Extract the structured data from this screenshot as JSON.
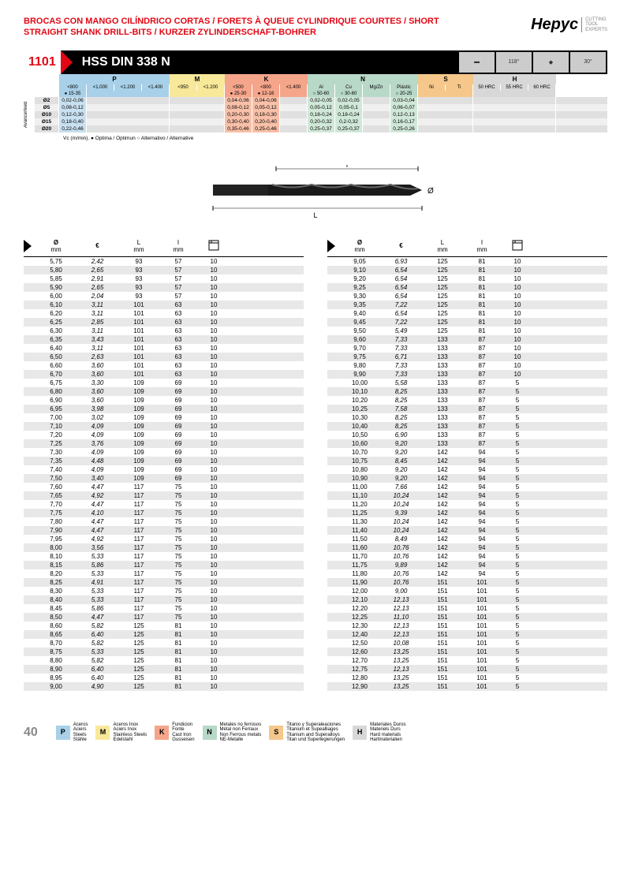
{
  "header": {
    "title": "BROCAS CON MANGO CILÍNDRICO CORTAS / FORETS À QUEUE CYLINDRIQUE COURTES / SHORT STRAIGHT SHANK DRILL-BITS / KURZER ZYLINDERSCHAFT-BOHRER",
    "logo": "Hepyc",
    "logo_tag": "CUTTING\nTOOL\nEXPERTS"
  },
  "band": {
    "num": "1101",
    "title": "HSS DIN 338 N",
    "angle1": "118°",
    "angle2": "30°"
  },
  "materials": {
    "groups": [
      "P",
      "M",
      "K",
      "N",
      "S",
      "H"
    ],
    "p_sub": [
      "<800",
      "<1.000",
      "<1.200",
      "<1.400"
    ],
    "m_sub": [
      "<950",
      "<1.200"
    ],
    "k_sub": [
      "<500",
      "<800",
      "<1.400"
    ],
    "n_sub": [
      "Al",
      "Cu",
      "Mg/Zn",
      "Plástic"
    ],
    "s_sub": [
      "Ni",
      "Ti"
    ],
    "h_sub": [
      "50 HRC",
      "55 HRC",
      "60 HRC"
    ],
    "p_mark": "●\n15-35",
    "k_mark1": "●\n25-30",
    "k_mark2": "●\n12-16",
    "n_mark1": "○\n50-60",
    "n_mark2": "○\n30-60",
    "n_mark4": "○\n20-25",
    "rows": [
      {
        "d": "Ø2",
        "p": "0,02-0,06",
        "k1": "0,04-0,06",
        "k2": "0,04-0,06",
        "n1": "0,02-0,05",
        "n2": "0,02-0,05",
        "n4": "0,03-0,04"
      },
      {
        "d": "Ø5",
        "p": "0,08-0,12",
        "k1": "0,08-0,12",
        "k2": "0,05-0,12",
        "n1": "0,05-0,12",
        "n2": "0,05-0,1",
        "n4": "0,06-0,07"
      },
      {
        "d": "Ø10",
        "p": "0,12-0,30",
        "k1": "0,20-0,30",
        "k2": "0,18-0,30",
        "n1": "0,18-0,24",
        "n2": "0,18-0,24",
        "n4": "0,12-0,13"
      },
      {
        "d": "Ø15",
        "p": "0,18-0,40",
        "k1": "0,30-0,40",
        "k2": "0,20-0,40",
        "n1": "0,20-0,32",
        "n2": "0,2-0,32",
        "n4": "0,16-0,17"
      },
      {
        "d": "Ø20",
        "p": "0,22-0,46",
        "k1": "0,35-0,46",
        "k2": "0,25-0,46",
        "n1": "0,25-0,37",
        "n2": "0,25-0,37",
        "n4": "0,25-0,26"
      }
    ],
    "note": "Vc (m/min). ● Optima / Optimun ○ Alternativo / Alternative",
    "feed_label": "Avance/feed"
  },
  "cols": {
    "dia": "Ø\nmm",
    "eur": "€",
    "L": "L\nmm",
    "I": "I\nmm",
    "qty": ""
  },
  "left": [
    [
      "5,75",
      "2,42",
      "93",
      "57",
      "10"
    ],
    [
      "5,80",
      "2,65",
      "93",
      "57",
      "10"
    ],
    [
      "5,85",
      "2,91",
      "93",
      "57",
      "10"
    ],
    [
      "5,90",
      "2,65",
      "93",
      "57",
      "10"
    ],
    [
      "6,00",
      "2,04",
      "93",
      "57",
      "10"
    ],
    [
      "6,10",
      "3,11",
      "101",
      "63",
      "10"
    ],
    [
      "6,20",
      "3,11",
      "101",
      "63",
      "10"
    ],
    [
      "6,25",
      "2,85",
      "101",
      "63",
      "10"
    ],
    [
      "6,30",
      "3,11",
      "101",
      "63",
      "10"
    ],
    [
      "6,35",
      "3,43",
      "101",
      "63",
      "10"
    ],
    [
      "6,40",
      "3,11",
      "101",
      "63",
      "10"
    ],
    [
      "6,50",
      "2,63",
      "101",
      "63",
      "10"
    ],
    [
      "6,60",
      "3,60",
      "101",
      "63",
      "10"
    ],
    [
      "6,70",
      "3,60",
      "101",
      "63",
      "10"
    ],
    [
      "6,75",
      "3,30",
      "109",
      "69",
      "10"
    ],
    [
      "6,80",
      "3,60",
      "109",
      "69",
      "10"
    ],
    [
      "6,90",
      "3,60",
      "109",
      "69",
      "10"
    ],
    [
      "6,95",
      "3,98",
      "109",
      "69",
      "10"
    ],
    [
      "7,00",
      "3,02",
      "109",
      "69",
      "10"
    ],
    [
      "7,10",
      "4,09",
      "109",
      "69",
      "10"
    ],
    [
      "7,20",
      "4,09",
      "109",
      "69",
      "10"
    ],
    [
      "7,25",
      "3,76",
      "109",
      "69",
      "10"
    ],
    [
      "7,30",
      "4,09",
      "109",
      "69",
      "10"
    ],
    [
      "7,35",
      "4,48",
      "109",
      "69",
      "10"
    ],
    [
      "7,40",
      "4,09",
      "109",
      "69",
      "10"
    ],
    [
      "7,50",
      "3,40",
      "109",
      "69",
      "10"
    ],
    [
      "7,60",
      "4,47",
      "117",
      "75",
      "10"
    ],
    [
      "7,65",
      "4,92",
      "117",
      "75",
      "10"
    ],
    [
      "7,70",
      "4,47",
      "117",
      "75",
      "10"
    ],
    [
      "7,75",
      "4,10",
      "117",
      "75",
      "10"
    ],
    [
      "7,80",
      "4,47",
      "117",
      "75",
      "10"
    ],
    [
      "7,90",
      "4,47",
      "117",
      "75",
      "10"
    ],
    [
      "7,95",
      "4,92",
      "117",
      "75",
      "10"
    ],
    [
      "8,00",
      "3,56",
      "117",
      "75",
      "10"
    ],
    [
      "8,10",
      "5,33",
      "117",
      "75",
      "10"
    ],
    [
      "8,15",
      "5,86",
      "117",
      "75",
      "10"
    ],
    [
      "8,20",
      "5,33",
      "117",
      "75",
      "10"
    ],
    [
      "8,25",
      "4,91",
      "117",
      "75",
      "10"
    ],
    [
      "8,30",
      "5,33",
      "117",
      "75",
      "10"
    ],
    [
      "8,40",
      "5,33",
      "117",
      "75",
      "10"
    ],
    [
      "8,45",
      "5,86",
      "117",
      "75",
      "10"
    ],
    [
      "8,50",
      "4,47",
      "117",
      "75",
      "10"
    ],
    [
      "8,60",
      "5,82",
      "125",
      "81",
      "10"
    ],
    [
      "8,65",
      "6,40",
      "125",
      "81",
      "10"
    ],
    [
      "8,70",
      "5,82",
      "125",
      "81",
      "10"
    ],
    [
      "8,75",
      "5,33",
      "125",
      "81",
      "10"
    ],
    [
      "8,80",
      "5,82",
      "125",
      "81",
      "10"
    ],
    [
      "8,90",
      "6,40",
      "125",
      "81",
      "10"
    ],
    [
      "8,95",
      "6,40",
      "125",
      "81",
      "10"
    ],
    [
      "9,00",
      "4,90",
      "125",
      "81",
      "10"
    ]
  ],
  "right": [
    [
      "9,05",
      "6,93",
      "125",
      "81",
      "10"
    ],
    [
      "9,10",
      "6,54",
      "125",
      "81",
      "10"
    ],
    [
      "9,20",
      "6,54",
      "125",
      "81",
      "10"
    ],
    [
      "9,25",
      "6,54",
      "125",
      "81",
      "10"
    ],
    [
      "9,30",
      "6,54",
      "125",
      "81",
      "10"
    ],
    [
      "9,35",
      "7,22",
      "125",
      "81",
      "10"
    ],
    [
      "9,40",
      "6,54",
      "125",
      "81",
      "10"
    ],
    [
      "9,45",
      "7,22",
      "125",
      "81",
      "10"
    ],
    [
      "9,50",
      "5,49",
      "125",
      "81",
      "10"
    ],
    [
      "9,60",
      "7,33",
      "133",
      "87",
      "10"
    ],
    [
      "9,70",
      "7,33",
      "133",
      "87",
      "10"
    ],
    [
      "9,75",
      "6,71",
      "133",
      "87",
      "10"
    ],
    [
      "9,80",
      "7,33",
      "133",
      "87",
      "10"
    ],
    [
      "9,90",
      "7,33",
      "133",
      "87",
      "10"
    ],
    [
      "10,00",
      "5,58",
      "133",
      "87",
      "5"
    ],
    [
      "10,10",
      "8,25",
      "133",
      "87",
      "5"
    ],
    [
      "10,20",
      "8,25",
      "133",
      "87",
      "5"
    ],
    [
      "10,25",
      "7,58",
      "133",
      "87",
      "5"
    ],
    [
      "10,30",
      "8,25",
      "133",
      "87",
      "5"
    ],
    [
      "10,40",
      "8,25",
      "133",
      "87",
      "5"
    ],
    [
      "10,50",
      "6,90",
      "133",
      "87",
      "5"
    ],
    [
      "10,60",
      "9,20",
      "133",
      "87",
      "5"
    ],
    [
      "10,70",
      "9,20",
      "142",
      "94",
      "5"
    ],
    [
      "10,75",
      "8,45",
      "142",
      "94",
      "5"
    ],
    [
      "10,80",
      "9,20",
      "142",
      "94",
      "5"
    ],
    [
      "10,90",
      "9,20",
      "142",
      "94",
      "5"
    ],
    [
      "11,00",
      "7,66",
      "142",
      "94",
      "5"
    ],
    [
      "11,10",
      "10,24",
      "142",
      "94",
      "5"
    ],
    [
      "11,20",
      "10,24",
      "142",
      "94",
      "5"
    ],
    [
      "11,25",
      "9,39",
      "142",
      "94",
      "5"
    ],
    [
      "11,30",
      "10,24",
      "142",
      "94",
      "5"
    ],
    [
      "11,40",
      "10,24",
      "142",
      "94",
      "5"
    ],
    [
      "11,50",
      "8,49",
      "142",
      "94",
      "5"
    ],
    [
      "11,60",
      "10,76",
      "142",
      "94",
      "5"
    ],
    [
      "11,70",
      "10,76",
      "142",
      "94",
      "5"
    ],
    [
      "11,75",
      "9,89",
      "142",
      "94",
      "5"
    ],
    [
      "11,80",
      "10,76",
      "142",
      "94",
      "5"
    ],
    [
      "11,90",
      "10,76",
      "151",
      "101",
      "5"
    ],
    [
      "12,00",
      "9,00",
      "151",
      "101",
      "5"
    ],
    [
      "12,10",
      "12,13",
      "151",
      "101",
      "5"
    ],
    [
      "12,20",
      "12,13",
      "151",
      "101",
      "5"
    ],
    [
      "12,25",
      "11,10",
      "151",
      "101",
      "5"
    ],
    [
      "12,30",
      "12,13",
      "151",
      "101",
      "5"
    ],
    [
      "12,40",
      "12,13",
      "151",
      "101",
      "5"
    ],
    [
      "12,50",
      "10,08",
      "151",
      "101",
      "5"
    ],
    [
      "12,60",
      "13,25",
      "151",
      "101",
      "5"
    ],
    [
      "12,70",
      "13,25",
      "151",
      "101",
      "5"
    ],
    [
      "12,75",
      "12,13",
      "151",
      "101",
      "5"
    ],
    [
      "12,80",
      "13,25",
      "151",
      "101",
      "5"
    ],
    [
      "12,90",
      "13,25",
      "151",
      "101",
      "5"
    ]
  ],
  "footer": {
    "page": "40",
    "items": [
      {
        "code": "P",
        "cls": "fb-p",
        "txt": "Aceros\nAciers\nSteels\nStähle"
      },
      {
        "code": "M",
        "cls": "fb-m",
        "txt": "Aceros Inox\nAciers Inox\nStainless Steels\nEdelstahl"
      },
      {
        "code": "K",
        "cls": "fb-k",
        "txt": "Fundicion\nFonte\nCast Iron\nGusseisen"
      },
      {
        "code": "N",
        "cls": "fb-n",
        "txt": "Metales no ferrosos\nMétal non Ferraux\nNon Ferrous metals\nNE-Metalle"
      },
      {
        "code": "S",
        "cls": "fb-s",
        "txt": "Titanio y Superaleaciones\nTitanium et Supealliages\nTitanium and Superalloys\nTitan und Superlegierungen"
      },
      {
        "code": "H",
        "cls": "fb-h",
        "txt": "Materiales Duros\nMateriels Durs\nHard materials\nHartmaterialien"
      }
    ]
  },
  "colors": {
    "red": "#e30613",
    "p": "#a8d0e8",
    "m": "#f7e89a",
    "k": "#f4a58a",
    "n": "#b8d8c8",
    "s": "#f5c78a",
    "h": "#d8d8d8",
    "alt": "#e8e8e8"
  }
}
